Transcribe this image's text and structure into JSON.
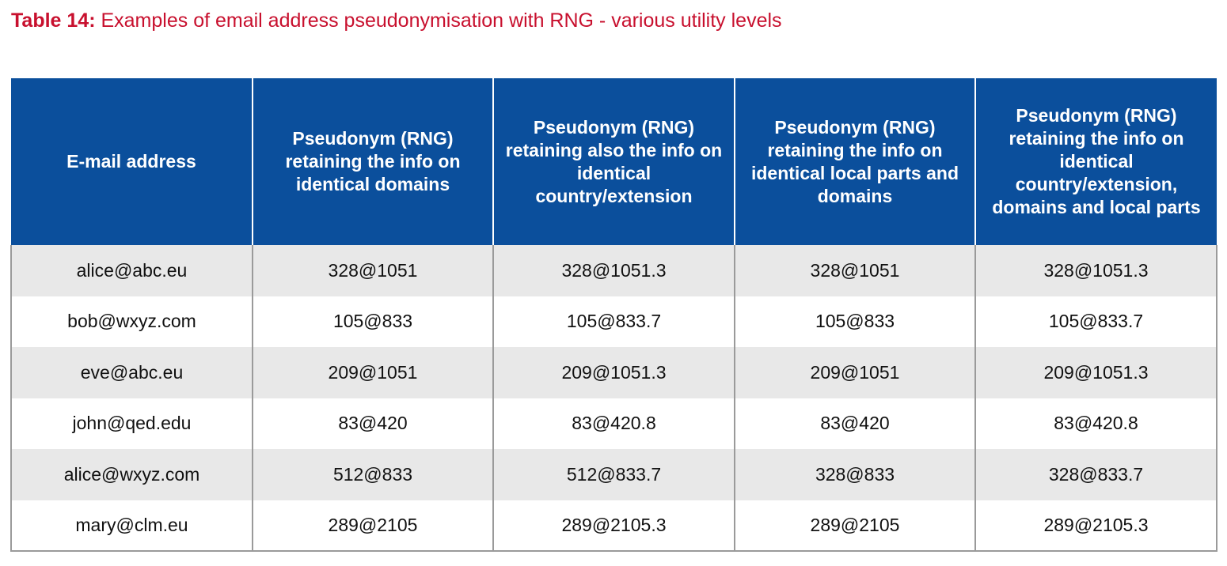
{
  "caption": {
    "label": "Table 14:",
    "text": " Examples of email address pseudonymisation with RNG - various utility levels"
  },
  "colors": {
    "caption": "#c8102e",
    "header_background": "#0b4f9c",
    "header_text": "#ffffff",
    "shaded_row": "#e8e8e8",
    "border": "#9a9a9a"
  },
  "table": {
    "headers": [
      "E-mail address",
      "Pseudonym (RNG) retaining the info on identical domains",
      "Pseudonym (RNG) retaining also the info on identical country/extension",
      "Pseudonym (RNG) retaining the info on identical local parts and domains",
      "Pseudonym (RNG) retaining the info  on identical country/extension, domains  and local parts"
    ],
    "rows": [
      [
        "alice@abc.eu",
        "328@1051",
        "328@1051.3",
        "328@1051",
        "328@1051.3"
      ],
      [
        "bob@wxyz.com",
        "105@833",
        "105@833.7",
        "105@833",
        "105@833.7"
      ],
      [
        "eve@abc.eu",
        "209@1051",
        "209@1051.3",
        "209@1051",
        "209@1051.3"
      ],
      [
        "john@qed.edu",
        "83@420",
        "83@420.8",
        "83@420",
        "83@420.8"
      ],
      [
        "alice@wxyz.com",
        "512@833",
        "512@833.7",
        "328@833",
        "328@833.7"
      ],
      [
        "mary@clm.eu",
        "289@2105",
        "289@2105.3",
        "289@2105",
        "289@2105.3"
      ]
    ]
  }
}
